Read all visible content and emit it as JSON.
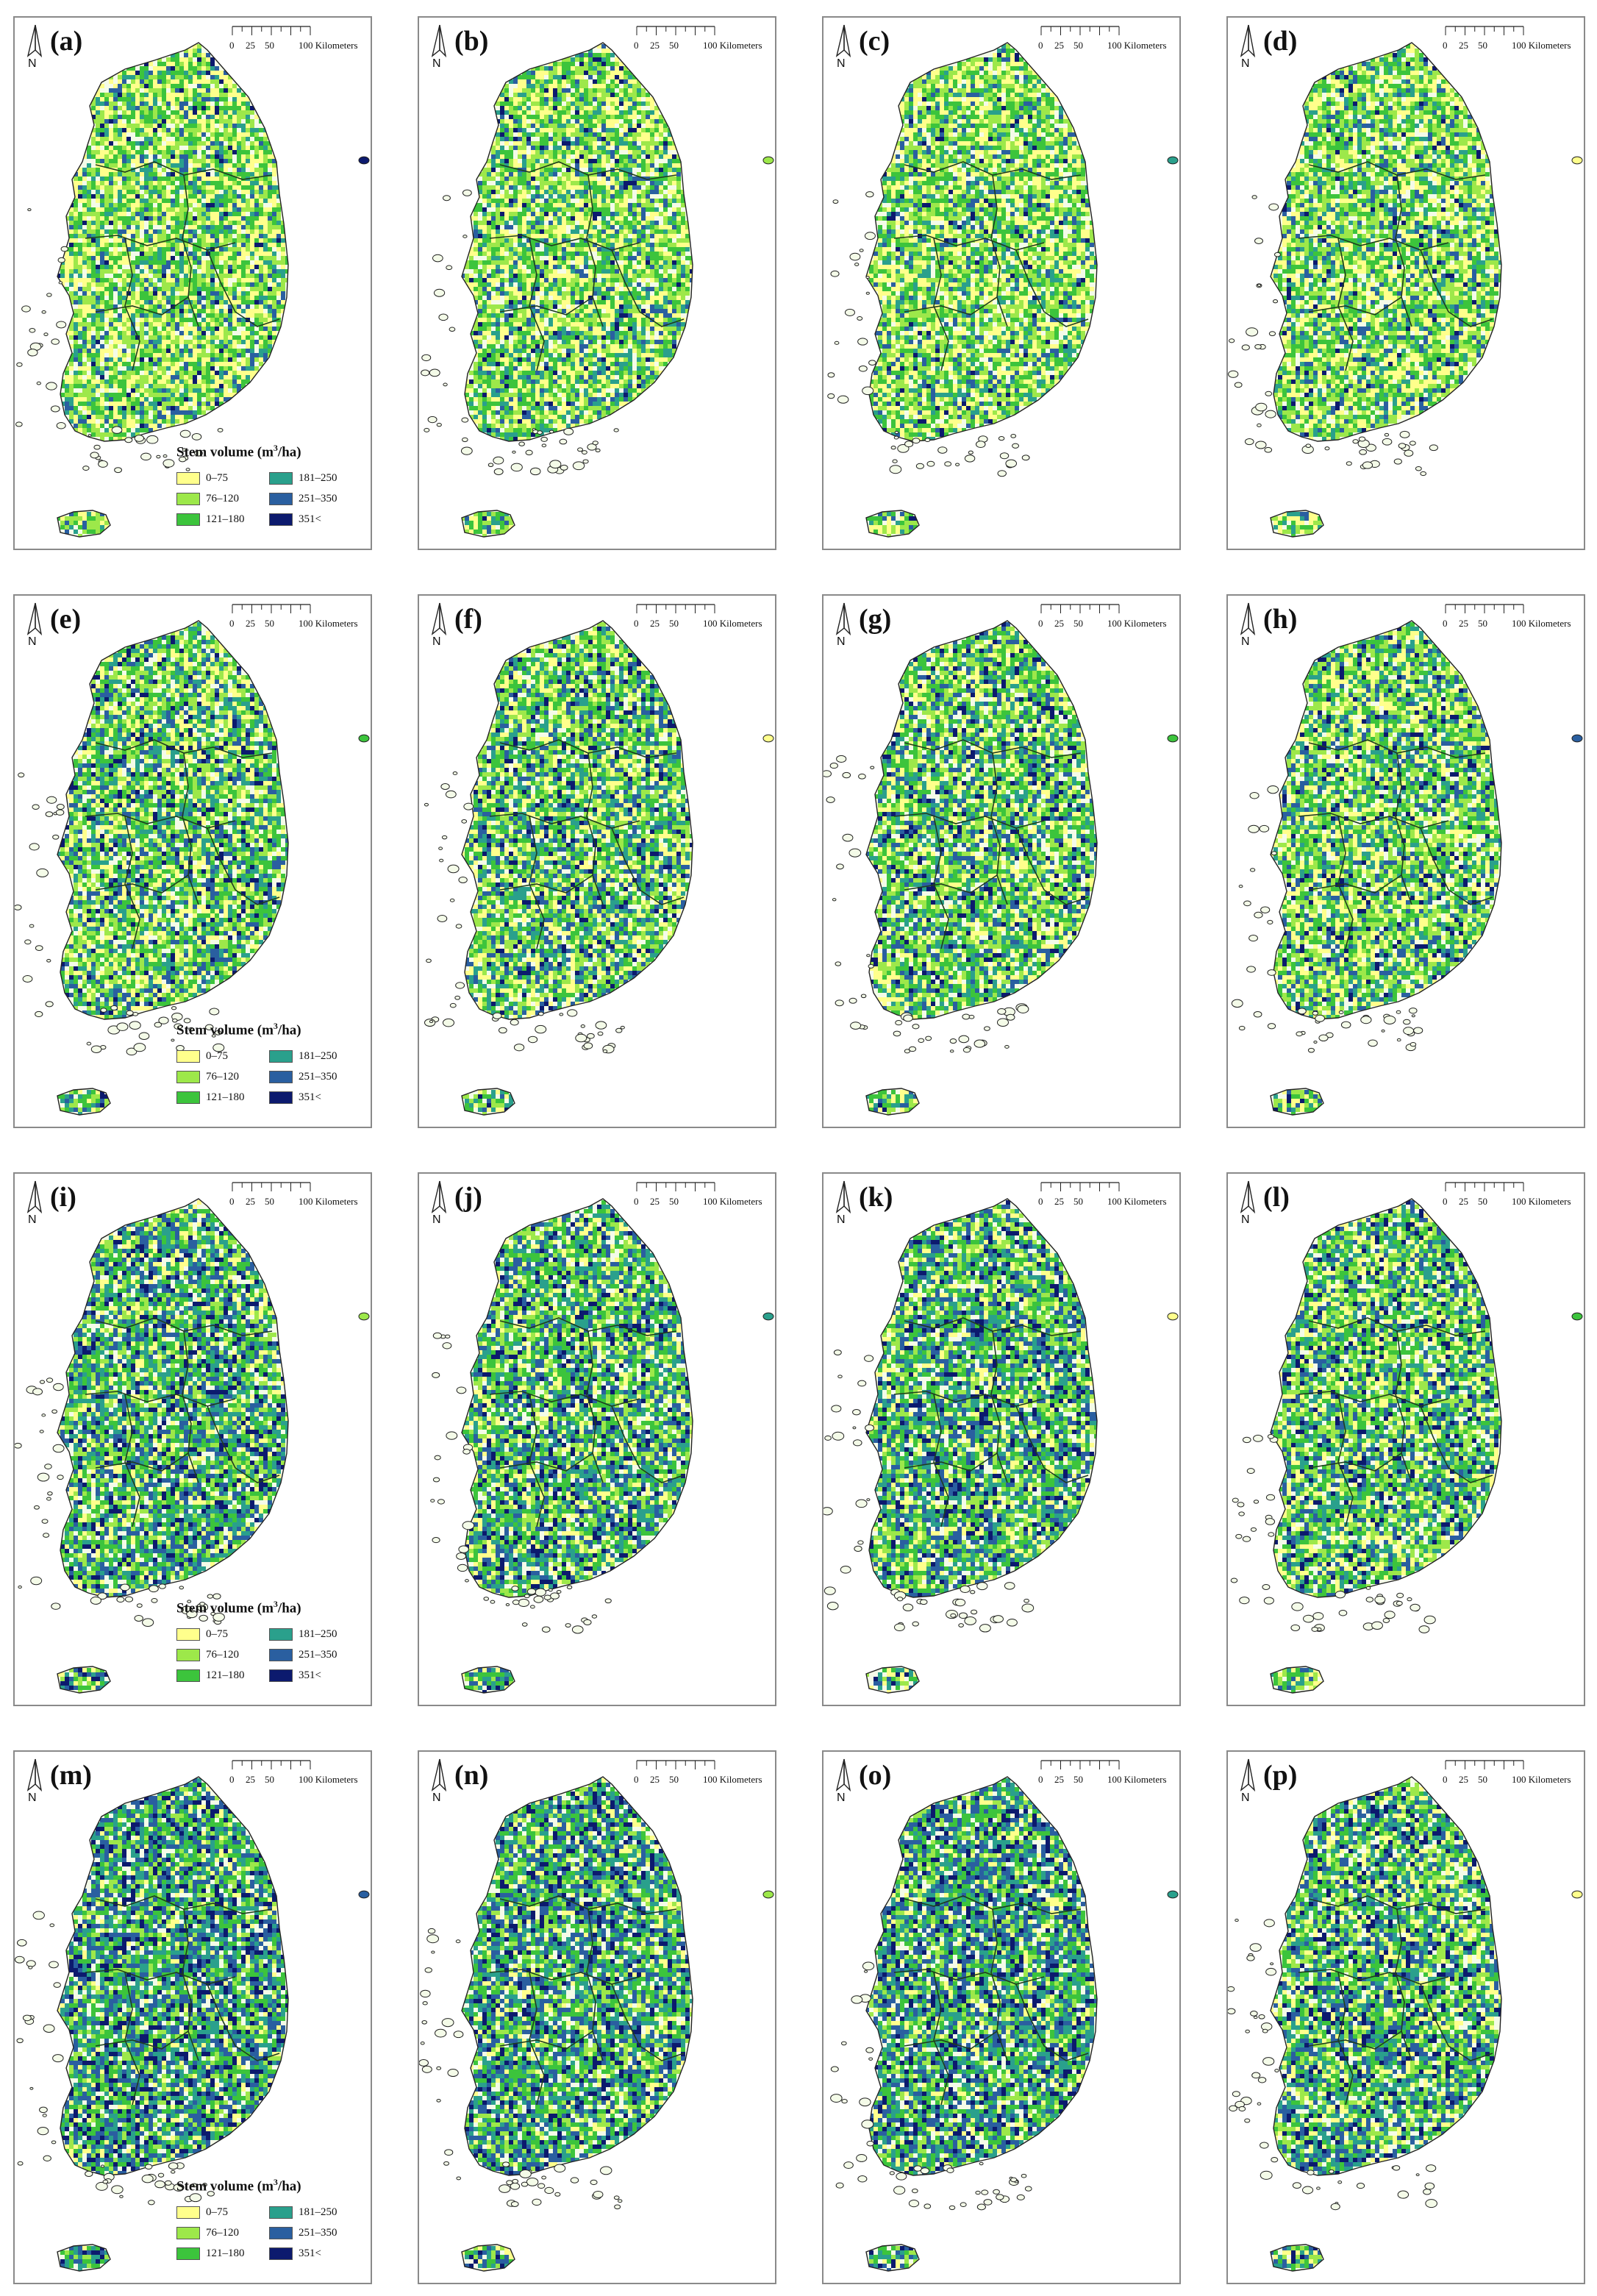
{
  "figure": {
    "panels": [
      {
        "label": "(a)",
        "density": 0.15,
        "show_legend": true
      },
      {
        "label": "(b)",
        "density": 0.18,
        "show_legend": false
      },
      {
        "label": "(c)",
        "density": 0.12,
        "show_legend": false
      },
      {
        "label": "(d)",
        "density": 0.13,
        "show_legend": false
      },
      {
        "label": "(e)",
        "density": 0.35,
        "show_legend": true
      },
      {
        "label": "(f)",
        "density": 0.38,
        "show_legend": false
      },
      {
        "label": "(g)",
        "density": 0.37,
        "show_legend": false
      },
      {
        "label": "(h)",
        "density": 0.3,
        "show_legend": false
      },
      {
        "label": "(i)",
        "density": 0.6,
        "show_legend": true
      },
      {
        "label": "(j)",
        "density": 0.55,
        "show_legend": false
      },
      {
        "label": "(k)",
        "density": 0.55,
        "show_legend": false
      },
      {
        "label": "(l)",
        "density": 0.4,
        "show_legend": false
      },
      {
        "label": "(m)",
        "density": 0.75,
        "show_legend": true
      },
      {
        "label": "(n)",
        "density": 0.68,
        "show_legend": false
      },
      {
        "label": "(o)",
        "density": 0.7,
        "show_legend": false
      },
      {
        "label": "(p)",
        "density": 0.5,
        "show_legend": false
      }
    ],
    "north_label": "N",
    "scale_bar": {
      "labels": [
        "0",
        "25",
        "50",
        "100 Kilometers"
      ]
    },
    "legend": {
      "title_prefix": "Stem volume (m",
      "title_sup": "3",
      "title_suffix": "/ha)",
      "classes": [
        {
          "label": "0–75",
          "color": "#ffff8c"
        },
        {
          "label": "76–120",
          "color": "#9de84a"
        },
        {
          "label": "121–180",
          "color": "#3cc43c"
        },
        {
          "label": "181–250",
          "color": "#2aa08c"
        },
        {
          "label": "251–350",
          "color": "#2a5fa0"
        },
        {
          "label": "351<",
          "color": "#0c1a6e"
        }
      ]
    }
  }
}
